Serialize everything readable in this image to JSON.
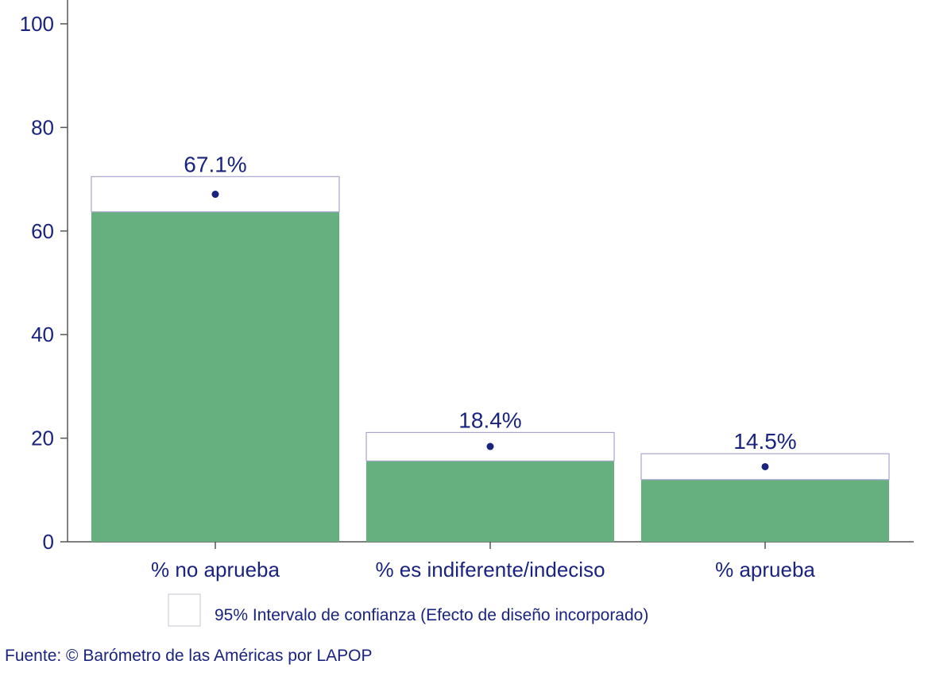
{
  "chart_data": {
    "type": "bar",
    "categories": [
      "% no aprueba",
      "% es indiferente/indeciso",
      "% aprueba"
    ],
    "values": [
      67.1,
      18.4,
      14.5
    ],
    "data_labels": [
      "67.1%",
      "18.4%",
      "14.5%"
    ],
    "ci_low": [
      63.7,
      15.6,
      12.0
    ],
    "ci_high": [
      70.5,
      21.1,
      17.0
    ],
    "ylim": [
      0,
      100
    ],
    "yticks": [
      "0",
      "20",
      "40",
      "60",
      "80",
      "100"
    ],
    "title": "",
    "xlabel": "",
    "ylabel": "",
    "grid": false,
    "legend_label": "95% Intervalo de confianza (Efecto de diseño incorporado)",
    "legend_position": "bottom",
    "source": "Fuente: © Barómetro de las Américas por LAPOP",
    "colors": {
      "bar": "#66b07f",
      "ci_box_stroke": "#a8a6d0",
      "point": "#1a237e",
      "text": "#1a237e",
      "axis": "#555555"
    }
  }
}
